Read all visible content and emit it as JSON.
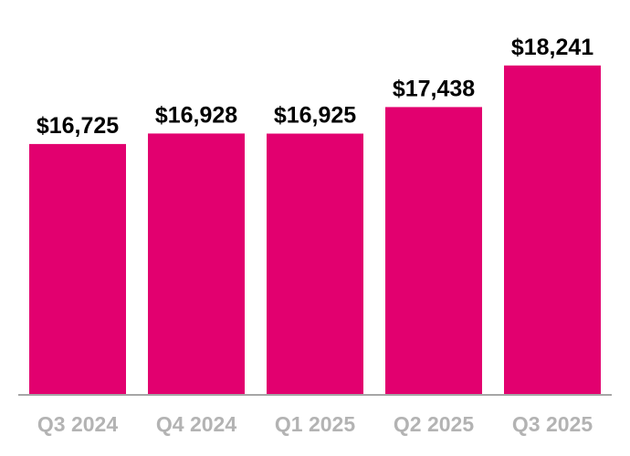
{
  "chart_data": {
    "type": "bar",
    "title": "",
    "xlabel": "",
    "ylabel": "",
    "categories": [
      "Q3 2024",
      "Q4 2024",
      "Q1 2025",
      "Q2 2025",
      "Q3 2025"
    ],
    "values": [
      16725,
      16928,
      16925,
      17438,
      18241
    ],
    "data_labels": [
      "$16,725",
      "$16,928",
      "$16,925",
      "$17,438",
      "$18,241"
    ],
    "ylim": [
      11900,
      18800
    ],
    "grid": false,
    "legend": "none",
    "colors": {
      "bar": "#e2006f",
      "axis": "#a6a6a6",
      "tick_label": "#b3b3b3",
      "value_label": "#000000"
    }
  }
}
